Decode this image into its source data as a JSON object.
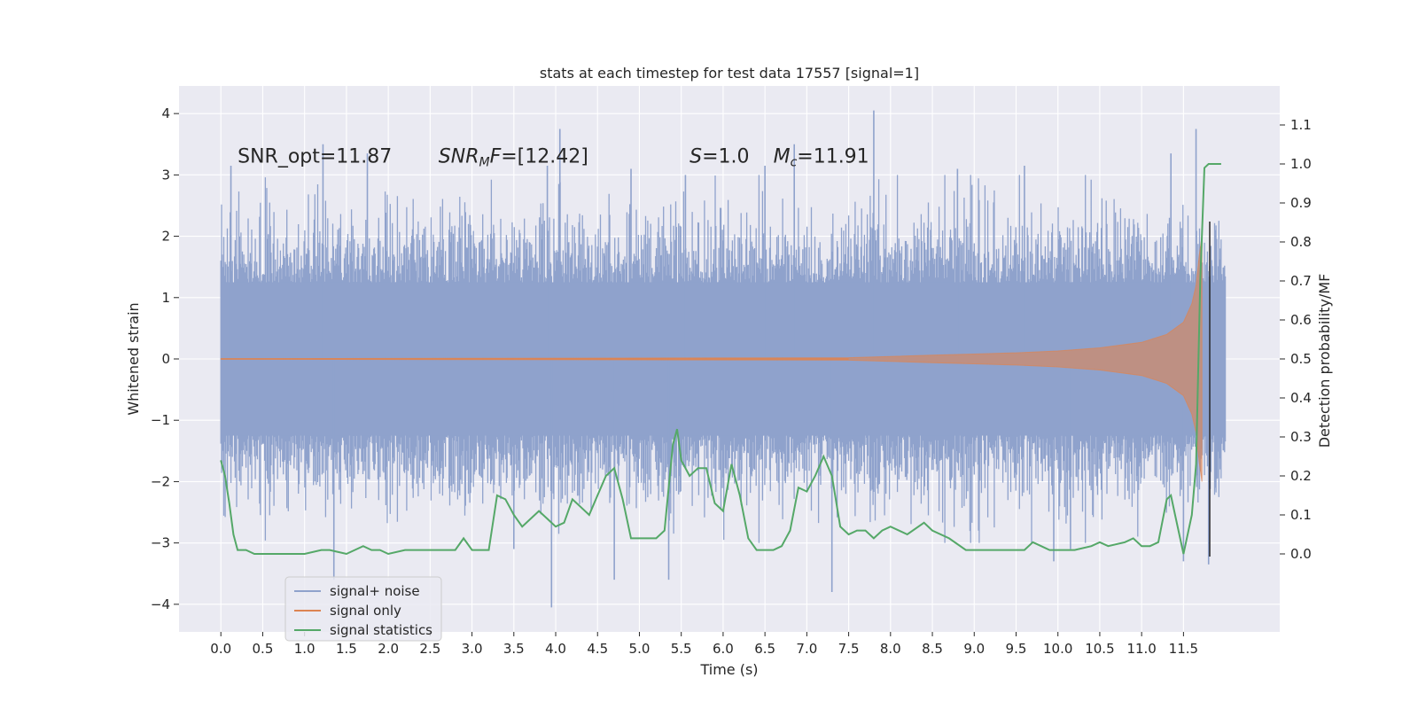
{
  "chart_data": {
    "type": "line",
    "title": "stats at each timestep for test data 17557 [signal=1]",
    "xlabel": "Time (s)",
    "ylabel": "Whitened strain",
    "ylabel_right": "Detection probability/MF",
    "xlim": [
      -0.5,
      12.65
    ],
    "ylim": [
      -4.45,
      4.45
    ],
    "ylim_right": [
      -0.2,
      1.2
    ],
    "xticks": [
      0.0,
      0.5,
      1.0,
      1.5,
      2.0,
      2.5,
      3.0,
      3.5,
      4.0,
      4.5,
      5.0,
      5.5,
      6.0,
      6.5,
      7.0,
      7.5,
      8.0,
      8.5,
      9.0,
      9.5,
      10.0,
      10.5,
      11.0,
      11.5
    ],
    "xtick_labels": [
      "0.0",
      "0.5",
      "1.0",
      "1.5",
      "2.0",
      "2.5",
      "3.0",
      "3.5",
      "4.0",
      "4.5",
      "5.0",
      "5.5",
      "6.0",
      "6.5",
      "7.0",
      "7.5",
      "8.0",
      "8.5",
      "9.0",
      "9.5",
      "10.0",
      "10.5",
      "11.0",
      "11.5"
    ],
    "yticks": [
      -4,
      -3,
      -2,
      -1,
      0,
      1,
      2,
      3,
      4
    ],
    "ytick_labels": [
      "−4",
      "−3",
      "−2",
      "−1",
      "0",
      "1",
      "2",
      "3",
      "4"
    ],
    "yticks_right": [
      0.0,
      0.1,
      0.2,
      0.3,
      0.4,
      0.5,
      0.6,
      0.7,
      0.8,
      0.9,
      1.0,
      1.1
    ],
    "ytick_labels_right": [
      "0.0",
      "0.1",
      "0.2",
      "0.3",
      "0.4",
      "0.5",
      "0.6",
      "0.7",
      "0.8",
      "0.9",
      "1.0",
      "1.1"
    ],
    "grid": true,
    "legend_placement": "lower-left",
    "annotations": [
      {
        "id": "snr-opt",
        "x": 0.2,
        "y": 3.2,
        "parts": [
          {
            "t": "SNR_opt=11.87",
            "i": false
          }
        ]
      },
      {
        "id": "snr-mf",
        "x": 2.6,
        "y": 3.2,
        "parts": [
          {
            "t": "SNR",
            "i": true
          },
          {
            "t": "M",
            "i": true,
            "sub": true
          },
          {
            "t": "F",
            "i": true
          },
          {
            "t": "=[12.42]",
            "i": false
          }
        ]
      },
      {
        "id": "s-stat",
        "x": 5.6,
        "y": 3.2,
        "parts": [
          {
            "t": "S",
            "i": true
          },
          {
            "t": "=1.0",
            "i": false
          }
        ]
      },
      {
        "id": "chirp-mass",
        "x": 6.6,
        "y": 3.2,
        "parts": [
          {
            "t": "M",
            "i": true
          },
          {
            "t": "c",
            "i": true,
            "sub": true
          },
          {
            "t": "=11.91",
            "i": false
          }
        ]
      }
    ],
    "series": [
      {
        "name": "signal+ noise",
        "color": "#8fa2cc",
        "kind": "dense-strain",
        "x_range": [
          0.0,
          12.0
        ],
        "typical_band": [
          -1.9,
          1.9
        ],
        "notable_peaks": [
          {
            "x": 0.12,
            "y": 3.15
          },
          {
            "x": 1.22,
            "y": 3.5
          },
          {
            "x": 1.35,
            "y": -3.6
          },
          {
            "x": 1.75,
            "y": 3.35
          },
          {
            "x": 3.5,
            "y": -3.1
          },
          {
            "x": 3.9,
            "y": 3.15
          },
          {
            "x": 3.95,
            "y": -4.05
          },
          {
            "x": 4.05,
            "y": 3.75
          },
          {
            "x": 4.7,
            "y": -3.6
          },
          {
            "x": 4.9,
            "y": 3.1
          },
          {
            "x": 5.35,
            "y": -3.6
          },
          {
            "x": 5.55,
            "y": 3.0
          },
          {
            "x": 6.5,
            "y": 3.15
          },
          {
            "x": 6.85,
            "y": 3.5
          },
          {
            "x": 7.3,
            "y": -3.8
          },
          {
            "x": 7.8,
            "y": 4.05
          },
          {
            "x": 8.8,
            "y": 3.1
          },
          {
            "x": 9.6,
            "y": 3.15
          },
          {
            "x": 9.95,
            "y": -3.3
          },
          {
            "x": 10.15,
            "y": -3.1
          },
          {
            "x": 11.35,
            "y": 3.35
          },
          {
            "x": 11.5,
            "y": -3.3
          },
          {
            "x": 11.65,
            "y": 3.75
          },
          {
            "x": 11.8,
            "y": -3.35
          }
        ]
      },
      {
        "name": "signal only",
        "color": "#dd8452",
        "kind": "chirp",
        "x_range": [
          0.0,
          11.72
        ],
        "envelope": [
          {
            "x": 0.0,
            "y": 0.005
          },
          {
            "x": 7.5,
            "y": 0.02
          },
          {
            "x": 8.0,
            "y": 0.04
          },
          {
            "x": 8.5,
            "y": 0.06
          },
          {
            "x": 9.0,
            "y": 0.08
          },
          {
            "x": 9.5,
            "y": 0.1
          },
          {
            "x": 10.0,
            "y": 0.13
          },
          {
            "x": 10.5,
            "y": 0.18
          },
          {
            "x": 11.0,
            "y": 0.27
          },
          {
            "x": 11.3,
            "y": 0.4
          },
          {
            "x": 11.5,
            "y": 0.6
          },
          {
            "x": 11.6,
            "y": 0.9
          },
          {
            "x": 11.65,
            "y": 1.2
          },
          {
            "x": 11.69,
            "y": 1.7
          },
          {
            "x": 11.72,
            "y": 2.0
          }
        ]
      },
      {
        "name": "signal statistics",
        "color": "#55a868",
        "kind": "line-right-axis",
        "x": [
          0.0,
          0.05,
          0.1,
          0.15,
          0.2,
          0.3,
          0.4,
          0.5,
          0.7,
          1.0,
          1.2,
          1.3,
          1.5,
          1.7,
          1.8,
          1.9,
          2.0,
          2.2,
          2.4,
          2.6,
          2.8,
          2.9,
          3.0,
          3.1,
          3.2,
          3.3,
          3.4,
          3.45,
          3.5,
          3.6,
          3.7,
          3.8,
          3.9,
          4.0,
          4.1,
          4.2,
          4.3,
          4.4,
          4.5,
          4.6,
          4.7,
          4.8,
          4.9,
          5.0,
          5.1,
          5.2,
          5.3,
          5.4,
          5.45,
          5.5,
          5.6,
          5.7,
          5.8,
          5.9,
          6.0,
          6.1,
          6.2,
          6.3,
          6.4,
          6.5,
          6.6,
          6.7,
          6.8,
          6.9,
          7.0,
          7.1,
          7.2,
          7.3,
          7.4,
          7.5,
          7.6,
          7.7,
          7.8,
          7.9,
          8.0,
          8.2,
          8.4,
          8.5,
          8.7,
          8.9,
          9.0,
          9.2,
          9.4,
          9.6,
          9.7,
          9.8,
          9.9,
          10.0,
          10.2,
          10.4,
          10.5,
          10.6,
          10.8,
          10.9,
          11.0,
          11.1,
          11.2,
          11.3,
          11.35,
          11.4,
          11.5,
          11.6,
          11.65,
          11.7,
          11.75,
          11.8,
          11.85,
          11.9,
          11.95
        ],
        "y": [
          0.24,
          0.2,
          0.13,
          0.05,
          0.01,
          0.01,
          0.0,
          0.0,
          0.0,
          0.0,
          0.01,
          0.01,
          0.0,
          0.02,
          0.01,
          0.01,
          0.0,
          0.01,
          0.01,
          0.01,
          0.01,
          0.04,
          0.01,
          0.01,
          0.01,
          0.15,
          0.14,
          0.12,
          0.1,
          0.07,
          0.09,
          0.11,
          0.09,
          0.07,
          0.08,
          0.14,
          0.12,
          0.1,
          0.15,
          0.2,
          0.22,
          0.14,
          0.04,
          0.04,
          0.04,
          0.04,
          0.06,
          0.28,
          0.32,
          0.24,
          0.2,
          0.22,
          0.22,
          0.13,
          0.11,
          0.23,
          0.15,
          0.04,
          0.01,
          0.01,
          0.01,
          0.02,
          0.06,
          0.17,
          0.16,
          0.2,
          0.25,
          0.2,
          0.07,
          0.05,
          0.06,
          0.06,
          0.04,
          0.06,
          0.07,
          0.05,
          0.08,
          0.06,
          0.04,
          0.01,
          0.01,
          0.01,
          0.01,
          0.01,
          0.03,
          0.02,
          0.01,
          0.01,
          0.01,
          0.02,
          0.03,
          0.02,
          0.03,
          0.04,
          0.02,
          0.02,
          0.03,
          0.14,
          0.15,
          0.1,
          0.0,
          0.1,
          0.23,
          0.7,
          0.99,
          1.0,
          1.0,
          1.0,
          1.0
        ]
      }
    ],
    "legend": [
      {
        "label": "signal+ noise",
        "color": "#8fa2cc"
      },
      {
        "label": "signal only",
        "color": "#dd8452"
      },
      {
        "label": "signal statistics",
        "color": "#55a868"
      }
    ]
  }
}
